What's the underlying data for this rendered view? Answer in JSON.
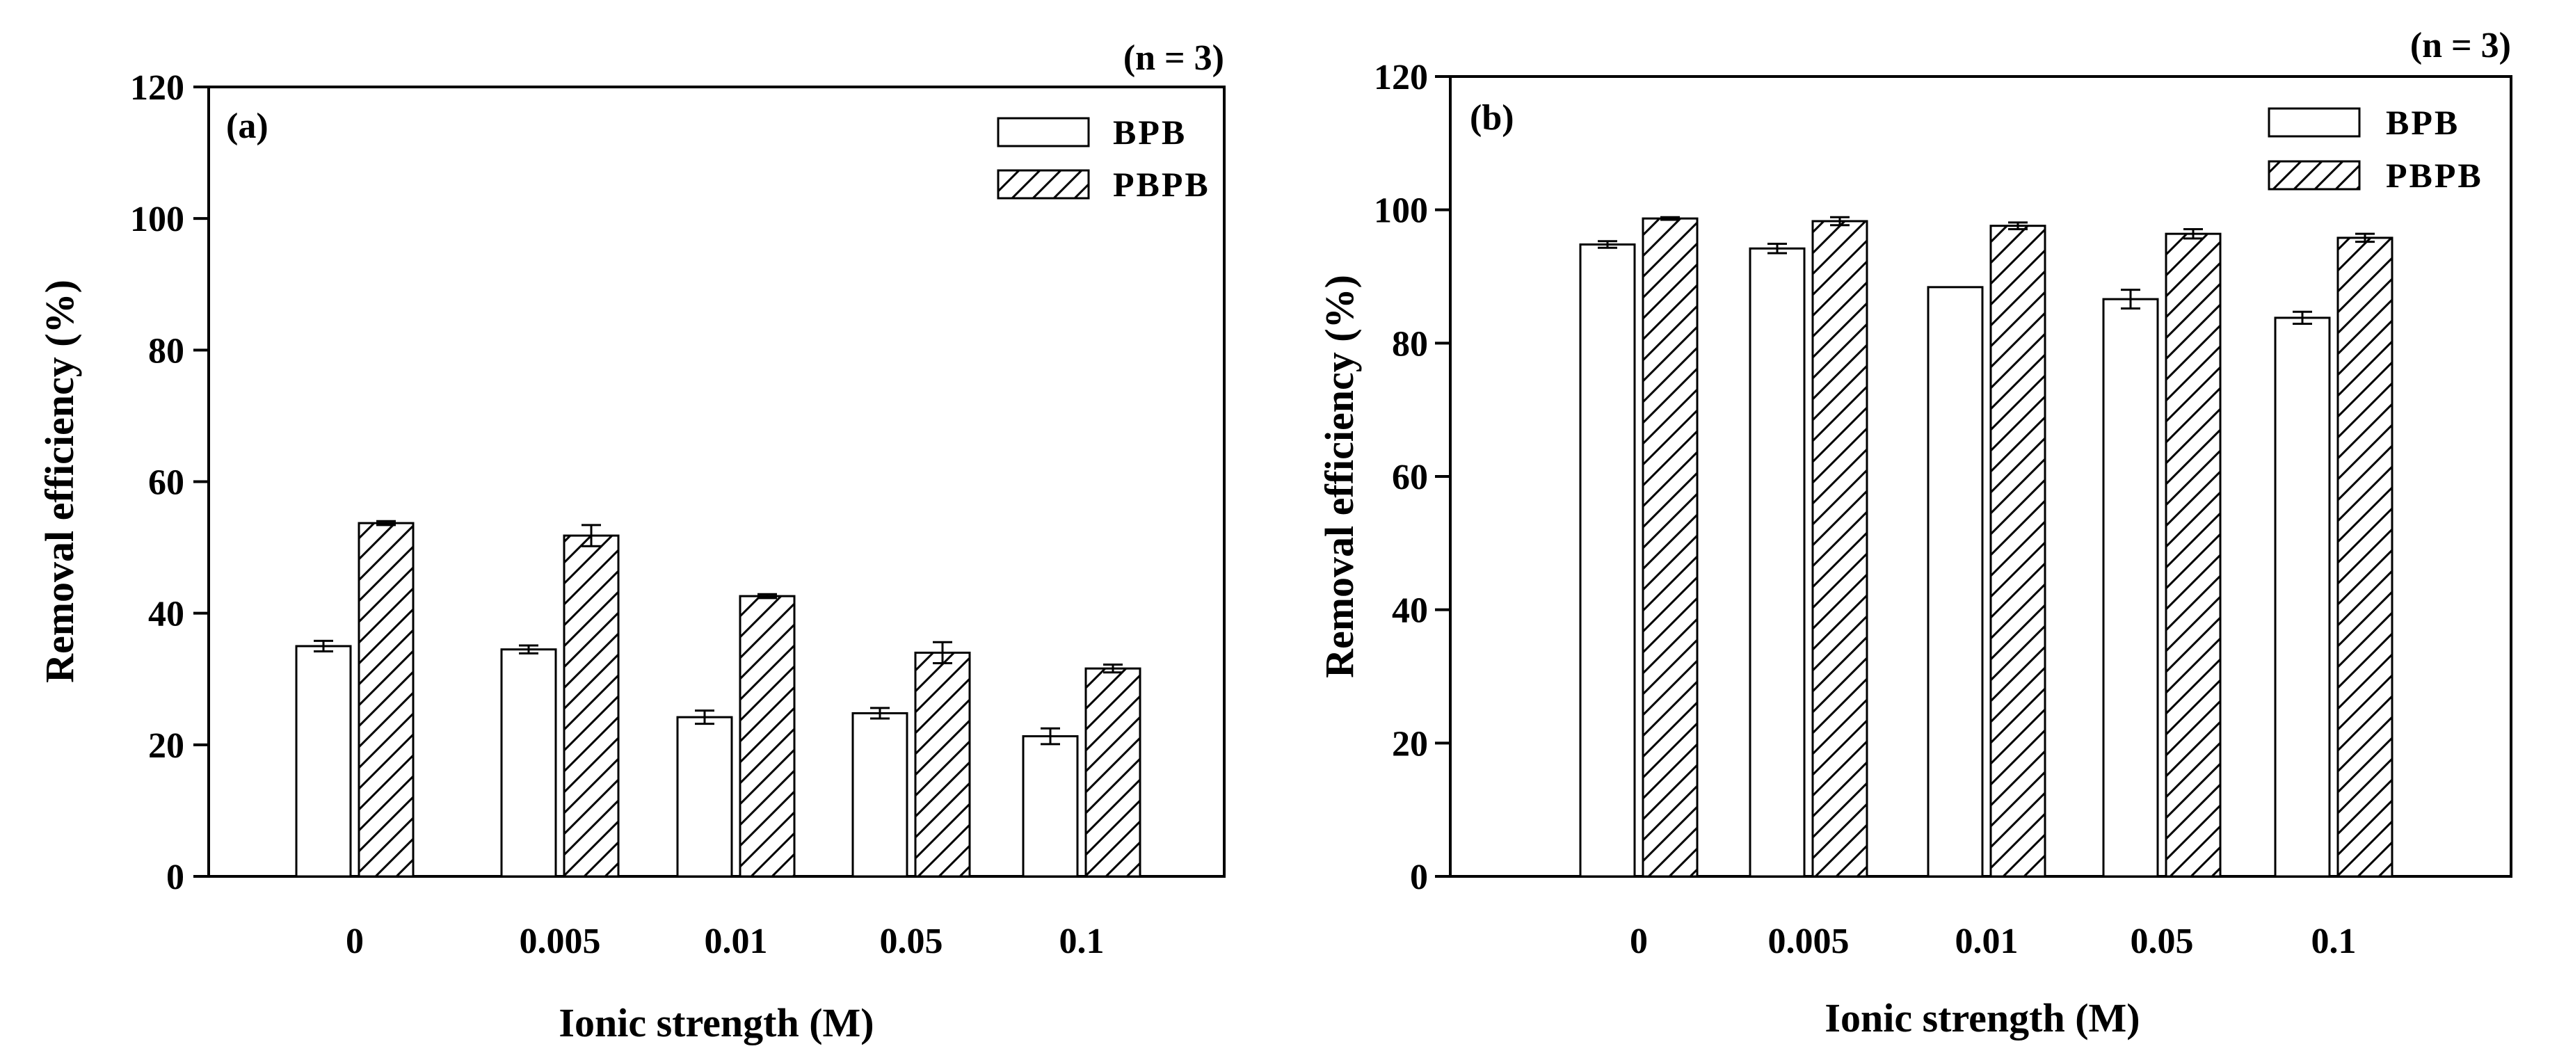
{
  "chart_data": [
    {
      "type": "bar",
      "panel_label": "(a)",
      "note": "(n = 3)",
      "xlabel": "Ionic strength (M)",
      "ylabel": "Removal efficiency (%)",
      "categories": [
        "0",
        "0.005",
        "0.01",
        "0.05",
        "0.1"
      ],
      "ylim": [
        0,
        120
      ],
      "yticks": [
        0,
        20,
        40,
        60,
        80,
        100,
        120
      ],
      "legend_position": "top-right",
      "series": [
        {
          "name": "BPB",
          "pattern": "none",
          "values": [
            35.0,
            34.5,
            24.2,
            24.8,
            21.3
          ],
          "errors": [
            0.8,
            0.6,
            1.0,
            0.8,
            1.2
          ]
        },
        {
          "name": "PBPB",
          "pattern": "hatch",
          "values": [
            53.7,
            51.8,
            42.6,
            34.0,
            31.6
          ],
          "errors": [
            0.3,
            1.6,
            0.3,
            1.6,
            0.6
          ]
        }
      ]
    },
    {
      "type": "bar",
      "panel_label": "(b)",
      "note": "(n = 3)",
      "xlabel": "Ionic strength (M)",
      "ylabel": "Removal efficiency (%)",
      "categories": [
        "0",
        "0.005",
        "0.01",
        "0.05",
        "0.1"
      ],
      "ylim": [
        0,
        120
      ],
      "yticks": [
        0,
        20,
        40,
        60,
        80,
        100,
        120
      ],
      "legend_position": "top-right",
      "series": [
        {
          "name": "BPB",
          "pattern": "none",
          "values": [
            94.8,
            94.2,
            88.4,
            86.6,
            83.8
          ],
          "errors": [
            0.5,
            0.7,
            0.0,
            1.4,
            0.9
          ]
        },
        {
          "name": "PBPB",
          "pattern": "hatch",
          "values": [
            98.7,
            98.3,
            97.6,
            96.4,
            95.8
          ],
          "errors": [
            0.2,
            0.6,
            0.5,
            0.7,
            0.6
          ]
        }
      ]
    }
  ],
  "colors": {
    "bar_fill": "#ffffff",
    "stroke": "#000000",
    "background": "#ffffff"
  }
}
